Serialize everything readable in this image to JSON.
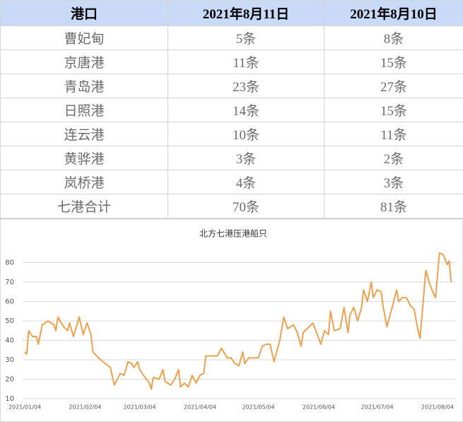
{
  "table": {
    "header": [
      "港口",
      "2021年8月11日",
      "2021年8月10日"
    ],
    "rows": [
      [
        "曹妃甸",
        "5条",
        "8条"
      ],
      [
        "京唐港",
        "11条",
        "15条"
      ],
      [
        "青岛港",
        "23条",
        "27条"
      ],
      [
        "日照港",
        "14条",
        "15条"
      ],
      [
        "连云港",
        "10条",
        "11条"
      ],
      [
        "黄骅港",
        "3条",
        "2条"
      ],
      [
        "岚桥港",
        "4条",
        "3条"
      ],
      [
        "七港合计",
        "70条",
        "81条"
      ]
    ]
  },
  "chart_data": {
    "type": "line",
    "title": "北方七港压港船只",
    "x": [
      "2021/01/04",
      "2021/01/05",
      "2021/01/06",
      "2021/01/08",
      "2021/01/10",
      "2021/01/11",
      "2021/01/13",
      "2021/01/16",
      "2021/01/19",
      "2021/01/20",
      "2021/01/21",
      "2021/01/24",
      "2021/01/26",
      "2021/01/27",
      "2021/01/29",
      "2021/02/01",
      "2021/02/03",
      "2021/02/05",
      "2021/02/07",
      "2021/02/08",
      "2021/02/12",
      "2021/02/17",
      "2021/02/19",
      "2021/02/22",
      "2021/02/24",
      "2021/02/26",
      "2021/02/28",
      "2021/03/01",
      "2021/03/03",
      "2021/03/04",
      "2021/03/06",
      "2021/03/09",
      "2021/03/10",
      "2021/03/11",
      "2021/03/14",
      "2021/03/16",
      "2021/03/17",
      "2021/03/20",
      "2021/03/22",
      "2021/03/24",
      "2021/03/25",
      "2021/03/27",
      "2021/03/29",
      "2021/03/31",
      "2021/04/02",
      "2021/04/04",
      "2021/04/06",
      "2021/04/07",
      "2021/04/11",
      "2021/04/13",
      "2021/04/15",
      "2021/04/18",
      "2021/04/20",
      "2021/04/22",
      "2021/04/24",
      "2021/04/26",
      "2021/04/27",
      "2021/04/29",
      "2021/05/02",
      "2021/05/04",
      "2021/05/06",
      "2021/05/08",
      "2021/05/10",
      "2021/05/12",
      "2021/05/15",
      "2021/05/17",
      "2021/05/19",
      "2021/05/22",
      "2021/05/24",
      "2021/05/26",
      "2021/05/27",
      "2021/05/29",
      "2021/06/01",
      "2021/06/04",
      "2021/06/05",
      "2021/06/07",
      "2021/06/09",
      "2021/06/10",
      "2021/06/12",
      "2021/06/15",
      "2021/06/17",
      "2021/06/19",
      "2021/06/20",
      "2021/06/22",
      "2021/06/24",
      "2021/06/26",
      "2021/06/27",
      "2021/06/29",
      "2021/07/01",
      "2021/07/02",
      "2021/07/04",
      "2021/07/06",
      "2021/07/07",
      "2021/07/09",
      "2021/07/12",
      "2021/07/14",
      "2021/07/15",
      "2021/07/17",
      "2021/07/19",
      "2021/07/21",
      "2021/07/23",
      "2021/07/25",
      "2021/07/26",
      "2021/07/29",
      "2021/07/31",
      "2021/08/02",
      "2021/08/03",
      "2021/08/05",
      "2021/08/07",
      "2021/08/09",
      "2021/08/10",
      "2021/08/11"
    ],
    "series": [
      {
        "color": "#f0a04b",
        "values": [
          34,
          33,
          45,
          42,
          42,
          38,
          48,
          50,
          48,
          45,
          52,
          47,
          45,
          49,
          42,
          52,
          43,
          49,
          43,
          34,
          30,
          26,
          17,
          23,
          22,
          29,
          28,
          26,
          29,
          25,
          22,
          18,
          15,
          21,
          20,
          25,
          19,
          17,
          20,
          25,
          16,
          18,
          16,
          22,
          18,
          22,
          23,
          32,
          32,
          32,
          36,
          31,
          31,
          28,
          27,
          34,
          28,
          31,
          31,
          31,
          37,
          38,
          38,
          29,
          40,
          52,
          46,
          48,
          44,
          37,
          44,
          46,
          49,
          41,
          38,
          45,
          43,
          55,
          45,
          46,
          57,
          44,
          53,
          57,
          50,
          57,
          66,
          60,
          70,
          62,
          66,
          65,
          58,
          47,
          58,
          66,
          60,
          62,
          62,
          58,
          56,
          45,
          41,
          76,
          69,
          64,
          62,
          85,
          84,
          79,
          81,
          70
        ]
      }
    ],
    "xlim": [
      "2021/01/02",
      "2021/08/12"
    ],
    "xticks": [
      "2021/01/04",
      "2021/02/04",
      "2021/03/04",
      "2021/04/04",
      "2021/05/04",
      "2021/06/04",
      "2021/07/04",
      "2021/08/04"
    ],
    "ylim": [
      10,
      90
    ],
    "yticks": [
      10,
      20,
      30,
      40,
      50,
      60,
      70,
      80
    ],
    "grid": true
  }
}
